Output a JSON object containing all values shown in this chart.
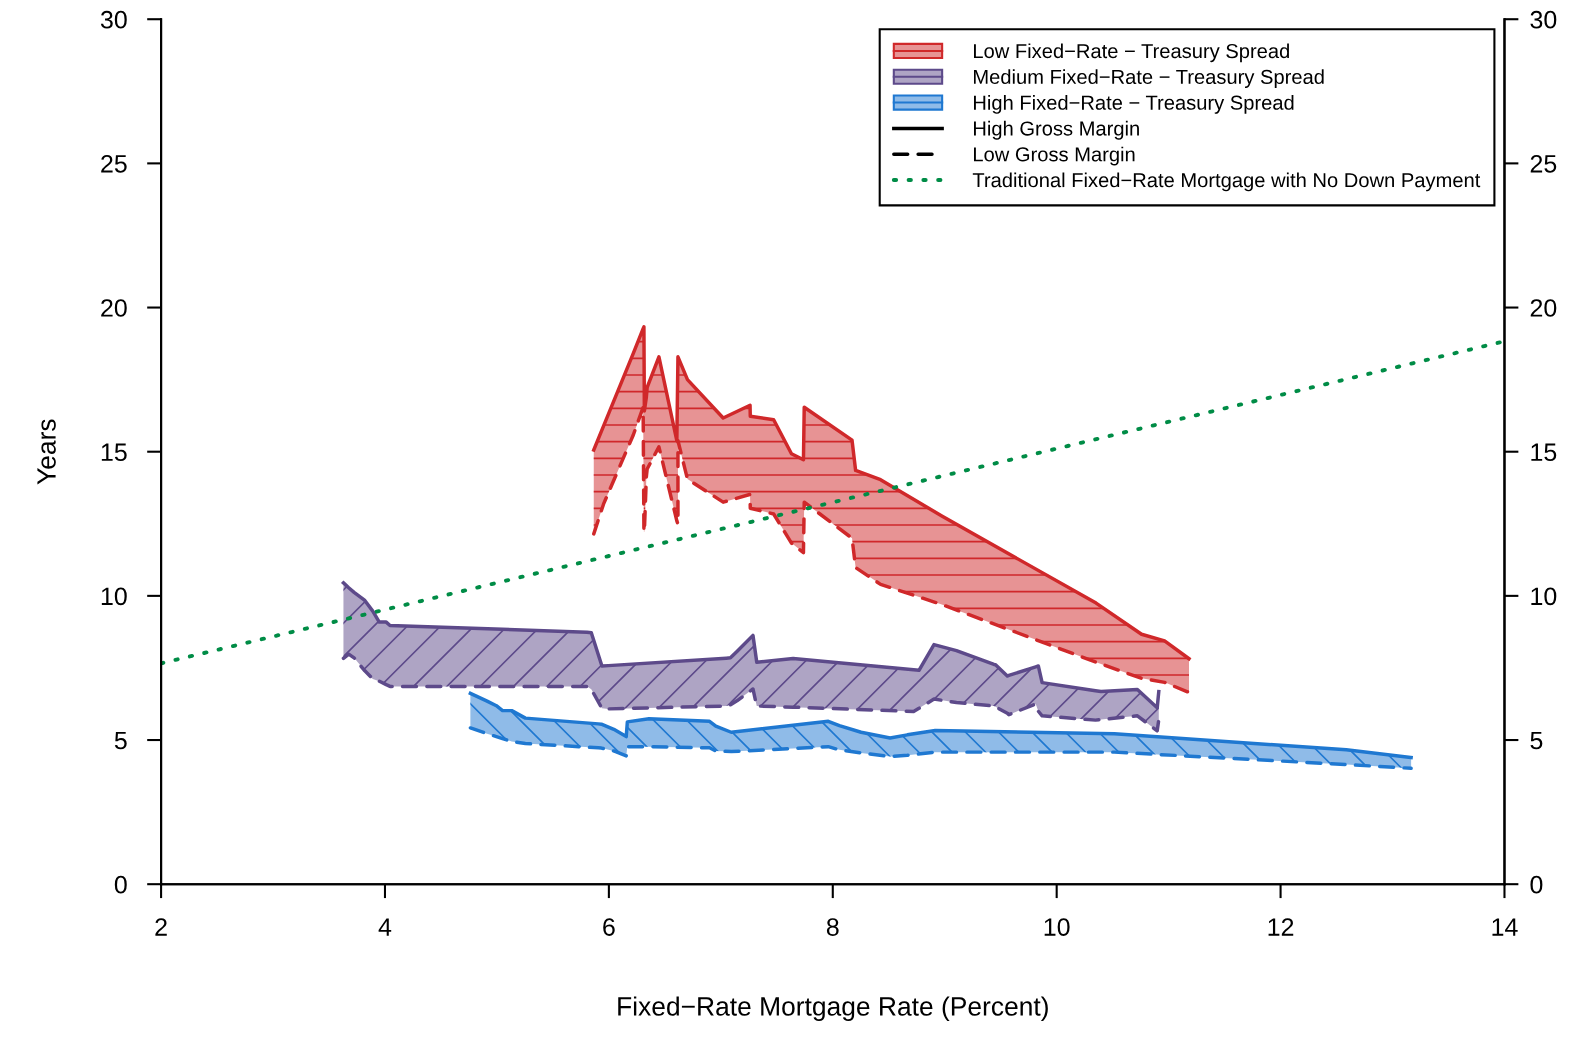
{
  "chart_data": {
    "type": "line",
    "xlabel": "Fixed−Rate Mortgage Rate (Percent)",
    "ylabel": "Years",
    "xlim": [
      2,
      14
    ],
    "xticks": [
      2,
      4,
      6,
      8,
      10,
      12,
      14
    ],
    "ylim": [
      0,
      30
    ],
    "yticks": [
      0,
      5,
      10,
      15,
      20,
      25,
      30
    ],
    "y2lim": [
      0,
      30
    ],
    "y2ticks": [
      0,
      5,
      10,
      15,
      20,
      25,
      30
    ],
    "legend": "top right",
    "grid": false,
    "series": [
      {
        "name": "Low Fixed−Rate − Treasury Spread",
        "color": "#d0282a",
        "line_style": "solid",
        "x": [
          5.865,
          5.952,
          6.218,
          6.306,
          6.313,
          6.317,
          6.335,
          6.342,
          6.447,
          6.607,
          6.617,
          6.617,
          6.702,
          7.021,
          7.261,
          7.263,
          7.472,
          7.631,
          7.738,
          7.745,
          8.172,
          8.204,
          8.427,
          8.974,
          10.352,
          10.758,
          10.964,
          11.182
        ],
        "values": [
          15.06,
          15.89,
          18.41,
          19.27,
          19.33,
          16.41,
          16.9,
          17.23,
          18.29,
          15.38,
          18.29,
          18.29,
          17.5,
          16.17,
          16.61,
          16.23,
          16.11,
          14.93,
          14.72,
          16.54,
          15.4,
          14.35,
          14.03,
          12.77,
          9.75,
          8.67,
          8.44,
          7.82
        ],
        "upper": [
          15.06,
          15.89,
          18.41,
          19.27,
          19.33,
          16.41,
          16.9,
          17.23,
          18.29,
          15.38,
          18.29,
          18.29,
          17.5,
          16.17,
          16.61,
          16.23,
          16.11,
          14.93,
          14.72,
          16.54,
          15.4,
          14.35,
          14.03,
          12.77,
          9.75,
          8.67,
          8.44,
          7.82
        ],
        "lower": [
          12.15,
          13.18,
          15.58,
          16.54,
          12.22,
          12.22,
          14.14,
          14.4,
          15.17,
          12.6,
          12.49,
          15.38,
          14.05,
          13.25,
          13.52,
          13.04,
          12.84,
          11.83,
          11.5,
          13.25,
          12.0,
          10.98,
          10.4,
          9.7,
          7.7,
          7.14,
          7.0,
          6.65
        ]
      },
      {
        "color": "#d0282a",
        "line_style": "dashed",
        "x": [
          5.865,
          5.952,
          6.218,
          6.306,
          6.313,
          6.317,
          6.335,
          6.342,
          6.447,
          6.607,
          6.617,
          6.617,
          6.702,
          7.021,
          7.261,
          7.263,
          7.472,
          7.631,
          7.738,
          7.745,
          8.172,
          8.204,
          8.427,
          8.974,
          10.352,
          10.758,
          10.964,
          11.182
        ],
        "values": [
          12.15,
          13.18,
          15.58,
          16.54,
          12.22,
          12.22,
          14.14,
          14.4,
          15.17,
          12.6,
          12.49,
          15.38,
          14.05,
          13.25,
          13.52,
          13.04,
          12.84,
          11.83,
          11.5,
          13.25,
          12.0,
          10.98,
          10.4,
          9.7,
          7.7,
          7.14,
          7.0,
          6.65
        ]
      },
      {
        "name": "Medium Fixed−Rate − Treasury Spread",
        "color": "#5d4a8a",
        "line_style": "solid",
        "x": [
          3.629,
          3.676,
          3.724,
          3.82,
          3.891,
          3.949,
          4.011,
          4.045,
          5.805,
          5.843,
          5.938,
          5.996,
          7.048,
          7.086,
          7.144,
          7.287,
          7.321,
          7.646,
          8.722,
          8.77,
          8.904,
          9.105,
          9.44,
          9.454,
          9.559,
          9.573,
          9.813,
          9.836,
          9.87,
          10.347,
          10.396,
          10.721,
          10.898,
          10.912
        ],
        "values": [
          10.45,
          10.28,
          10.12,
          9.84,
          9.47,
          9.09,
          9.09,
          8.97,
          8.74,
          8.72,
          7.57,
          7.58,
          7.84,
          7.85,
          8.07,
          8.63,
          7.7,
          7.83,
          7.44,
          7.42,
          8.31,
          8.1,
          7.62,
          7.61,
          7.22,
          7.24,
          7.54,
          7.57,
          6.99,
          6.71,
          6.68,
          6.75,
          6.12,
          6.68
        ],
        "upper": [
          10.45,
          10.28,
          10.12,
          9.84,
          9.47,
          9.09,
          9.09,
          8.97,
          8.74,
          8.72,
          7.57,
          7.58,
          7.84,
          7.85,
          8.07,
          8.63,
          7.7,
          7.83,
          7.44,
          7.42,
          8.31,
          8.1,
          7.62,
          7.61,
          7.22,
          7.24,
          7.54,
          7.57,
          6.99,
          6.71,
          6.68,
          6.75,
          6.12,
          6.68
        ],
        "lower": [
          7.83,
          7.98,
          7.85,
          7.4,
          7.12,
          7.04,
          6.92,
          6.86,
          6.86,
          6.76,
          6.1,
          6.08,
          6.18,
          6.22,
          6.36,
          6.77,
          6.18,
          6.14,
          5.99,
          6.1,
          6.42,
          6.3,
          6.18,
          6.15,
          5.93,
          5.88,
          6.25,
          6.0,
          5.84,
          5.69,
          5.71,
          5.84,
          5.32,
          5.7
        ]
      },
      {
        "color": "#5d4a8a",
        "line_style": "dashed",
        "x": [
          3.629,
          3.676,
          3.724,
          3.82,
          3.891,
          3.949,
          4.011,
          4.045,
          5.805,
          5.843,
          5.938,
          5.996,
          7.048,
          7.086,
          7.144,
          7.287,
          7.321,
          7.646,
          8.722,
          8.77,
          8.904,
          9.105,
          9.44,
          9.454,
          9.559,
          9.573,
          9.813,
          9.836,
          9.87,
          10.347,
          10.396,
          10.721,
          10.898,
          10.912
        ],
        "values": [
          7.83,
          7.98,
          7.85,
          7.4,
          7.12,
          7.04,
          6.92,
          6.86,
          6.86,
          6.76,
          6.1,
          6.08,
          6.18,
          6.22,
          6.36,
          6.77,
          6.18,
          6.14,
          5.99,
          6.1,
          6.42,
          6.3,
          6.18,
          6.15,
          5.93,
          5.88,
          6.25,
          6.0,
          5.84,
          5.69,
          5.71,
          5.84,
          5.32,
          5.7
        ]
      },
      {
        "name": "High Fixed−Rate − Treasury Spread",
        "color": "#1f78d1",
        "line_style": "solid",
        "x": [
          4.763,
          4.912,
          4.995,
          5.05,
          5.132,
          5.254,
          5.905,
          5.933,
          6.044,
          6.155,
          6.165,
          6.358,
          6.899,
          6.955,
          7.093,
          7.96,
          8.059,
          8.253,
          8.512,
          8.666,
          8.915,
          10.516,
          12.587,
          13.166
        ],
        "values": [
          6.62,
          6.35,
          6.19,
          6.02,
          6.02,
          5.76,
          5.56,
          5.55,
          5.37,
          5.12,
          5.63,
          5.74,
          5.65,
          5.48,
          5.27,
          5.65,
          5.5,
          5.27,
          5.07,
          5.18,
          5.33,
          5.22,
          4.66,
          4.39
        ],
        "upper": [
          6.62,
          6.35,
          6.19,
          6.02,
          6.02,
          5.76,
          5.56,
          5.55,
          5.37,
          5.12,
          5.63,
          5.74,
          5.65,
          5.48,
          5.27,
          5.65,
          5.5,
          5.27,
          5.07,
          5.18,
          5.33,
          5.22,
          4.66,
          4.39
        ],
        "lower": [
          5.42,
          5.22,
          5.12,
          5.05,
          4.95,
          4.88,
          4.73,
          4.72,
          4.62,
          4.45,
          4.77,
          4.77,
          4.73,
          4.62,
          4.6,
          4.77,
          4.66,
          4.55,
          4.43,
          4.47,
          4.58,
          4.58,
          4.15,
          4.02
        ]
      },
      {
        "color": "#1f78d1",
        "line_style": "dashed",
        "x": [
          4.763,
          4.912,
          4.995,
          5.05,
          5.132,
          5.254,
          5.905,
          5.933,
          6.044,
          6.155,
          6.165,
          6.358,
          6.899,
          6.955,
          7.093,
          7.96,
          8.059,
          8.253,
          8.512,
          8.666,
          8.915,
          10.516,
          12.587,
          13.166
        ],
        "values": [
          5.42,
          5.22,
          5.12,
          5.05,
          4.95,
          4.88,
          4.73,
          4.72,
          4.62,
          4.45,
          4.77,
          4.77,
          4.73,
          4.62,
          4.6,
          4.77,
          4.66,
          4.55,
          4.43,
          4.47,
          4.58,
          4.58,
          4.15,
          4.02
        ]
      },
      {
        "name": "High Gross Margin",
        "color": "#000000",
        "line_style": "solid"
      },
      {
        "name": "Low Gross Margin",
        "color": "#000000",
        "line_style": "dashed"
      },
      {
        "name": "Traditional Fixed−Rate Mortgage with No Down Payment",
        "color": "#008c46",
        "line_style": "dotted",
        "x": [
          2,
          14
        ],
        "values": [
          7.66,
          18.83
        ]
      }
    ]
  }
}
